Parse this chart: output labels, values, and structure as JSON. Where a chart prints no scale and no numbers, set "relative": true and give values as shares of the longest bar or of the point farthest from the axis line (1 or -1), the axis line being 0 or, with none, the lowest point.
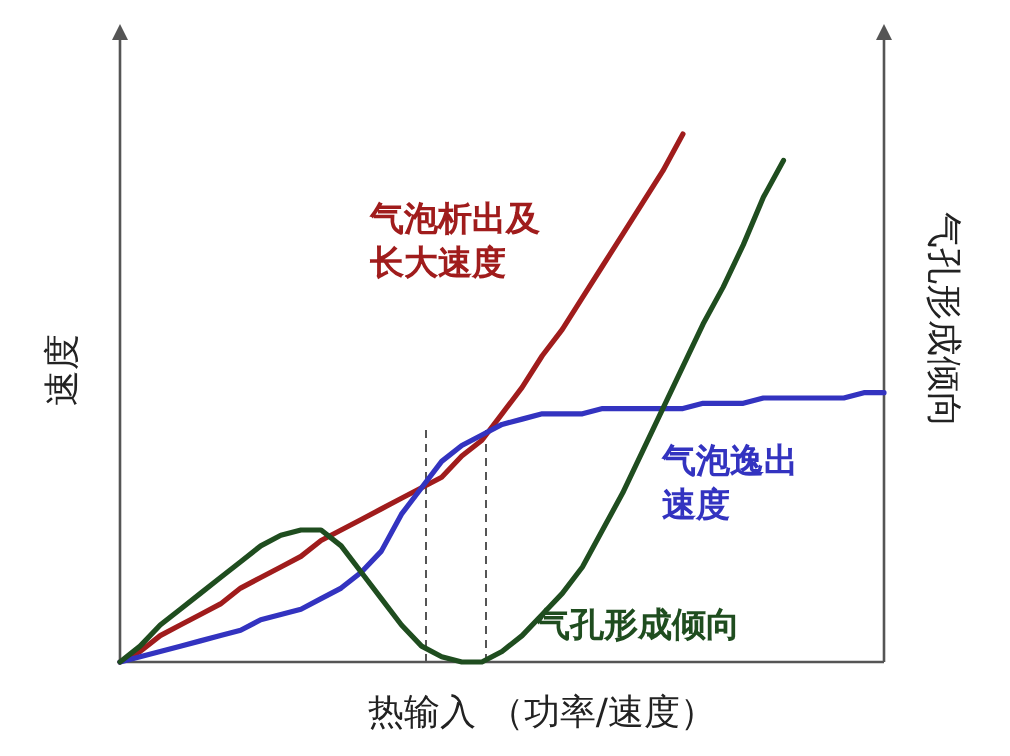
{
  "chart_data": {
    "type": "line",
    "relative": true,
    "xlabel": "热输入 （功率/速度）",
    "ylabel": "速度",
    "y2label": "气孔形成倾向",
    "categories": [
      null,
      null,
      null,
      null,
      null,
      null,
      null,
      null,
      null,
      null,
      null,
      null,
      null,
      null,
      null,
      null,
      null,
      null,
      null,
      null,
      null,
      null,
      null,
      null,
      null,
      null,
      null,
      null,
      null,
      null,
      null,
      null,
      null,
      null,
      null,
      null,
      null,
      null,
      null
    ],
    "series": [
      {
        "name": "气泡析出及长大速度",
        "color": "#a01c1c",
        "values": [
          0,
          0.02,
          0.05,
          0.07,
          0.09,
          0.11,
          0.14,
          0.16,
          0.18,
          0.2,
          0.23,
          0.25,
          0.27,
          0.29,
          0.31,
          0.33,
          0.35,
          0.39,
          0.42,
          0.47,
          0.52,
          0.58,
          0.63,
          0.69,
          0.75,
          0.81,
          0.87,
          0.93,
          1,
          null,
          null,
          null,
          null,
          null,
          null,
          null,
          null,
          null,
          null
        ]
      },
      {
        "name": "气泡逸出速度",
        "color": "#3333c0",
        "values": [
          0,
          0.01,
          0.02,
          0.03,
          0.04,
          0.05,
          0.06,
          0.08,
          0.09,
          0.1,
          0.12,
          0.14,
          0.17,
          0.21,
          0.28,
          0.33,
          0.38,
          0.41,
          0.43,
          0.45,
          0.46,
          0.47,
          0.47,
          0.47,
          0.48,
          0.48,
          0.48,
          0.48,
          0.48,
          0.49,
          0.49,
          0.49,
          0.5,
          0.5,
          0.5,
          0.5,
          0.5,
          0.51,
          0.51
        ]
      },
      {
        "name": "气孔形成倾向",
        "color": "#1f4d1f",
        "values": [
          0,
          0.03,
          0.07,
          0.1,
          0.13,
          0.16,
          0.19,
          0.22,
          0.24,
          0.25,
          0.25,
          0.22,
          0.17,
          0.12,
          0.07,
          0.03,
          0.01,
          0,
          0,
          0.02,
          0.05,
          0.09,
          0.13,
          0.18,
          0.25,
          0.32,
          0.4,
          0.48,
          0.56,
          0.64,
          0.71,
          0.79,
          0.88,
          0.95,
          null,
          null,
          null,
          null,
          null
        ]
      }
    ],
    "marker": "none",
    "line_style": "solid",
    "legend": false,
    "grid": false
  }
}
